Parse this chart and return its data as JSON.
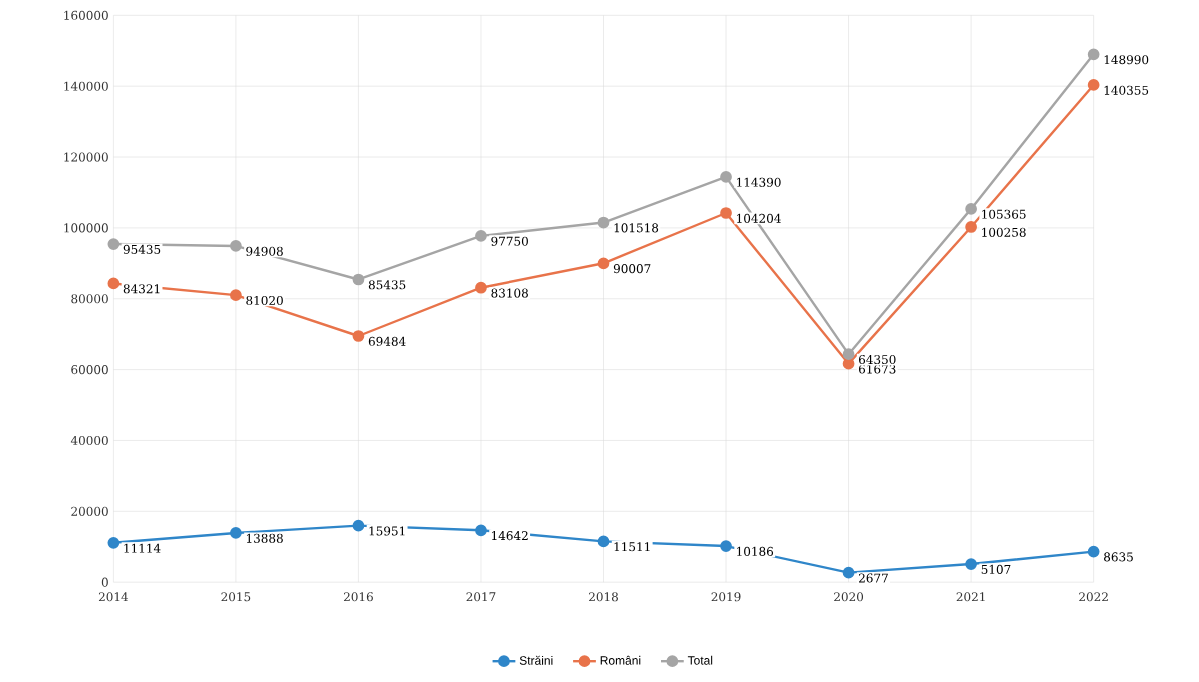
{
  "chart_data": {
    "type": "line",
    "categories": [
      "2014",
      "2015",
      "2016",
      "2017",
      "2018",
      "2019",
      "2020",
      "2021",
      "2022"
    ],
    "series": [
      {
        "name": "Străini",
        "color": "#2f86c9",
        "values": [
          11114,
          13888,
          15951,
          14642,
          11511,
          10186,
          2677,
          5107,
          8635
        ]
      },
      {
        "name": "Români",
        "color": "#e8734a",
        "values": [
          84321,
          81020,
          69484,
          83108,
          90007,
          104204,
          61673,
          100258,
          140355
        ]
      },
      {
        "name": "Total",
        "color": "#a5a5a5",
        "values": [
          95435,
          94908,
          85435,
          97750,
          101518,
          114390,
          64350,
          105365,
          148990
        ]
      }
    ],
    "ylim": [
      0,
      160000
    ],
    "yticks": [
      0,
      20000,
      40000,
      60000,
      80000,
      100000,
      120000,
      140000,
      160000
    ],
    "grid": true,
    "legend": "bottom",
    "marker": "circle",
    "line_style": "solid",
    "data_labels": true
  }
}
